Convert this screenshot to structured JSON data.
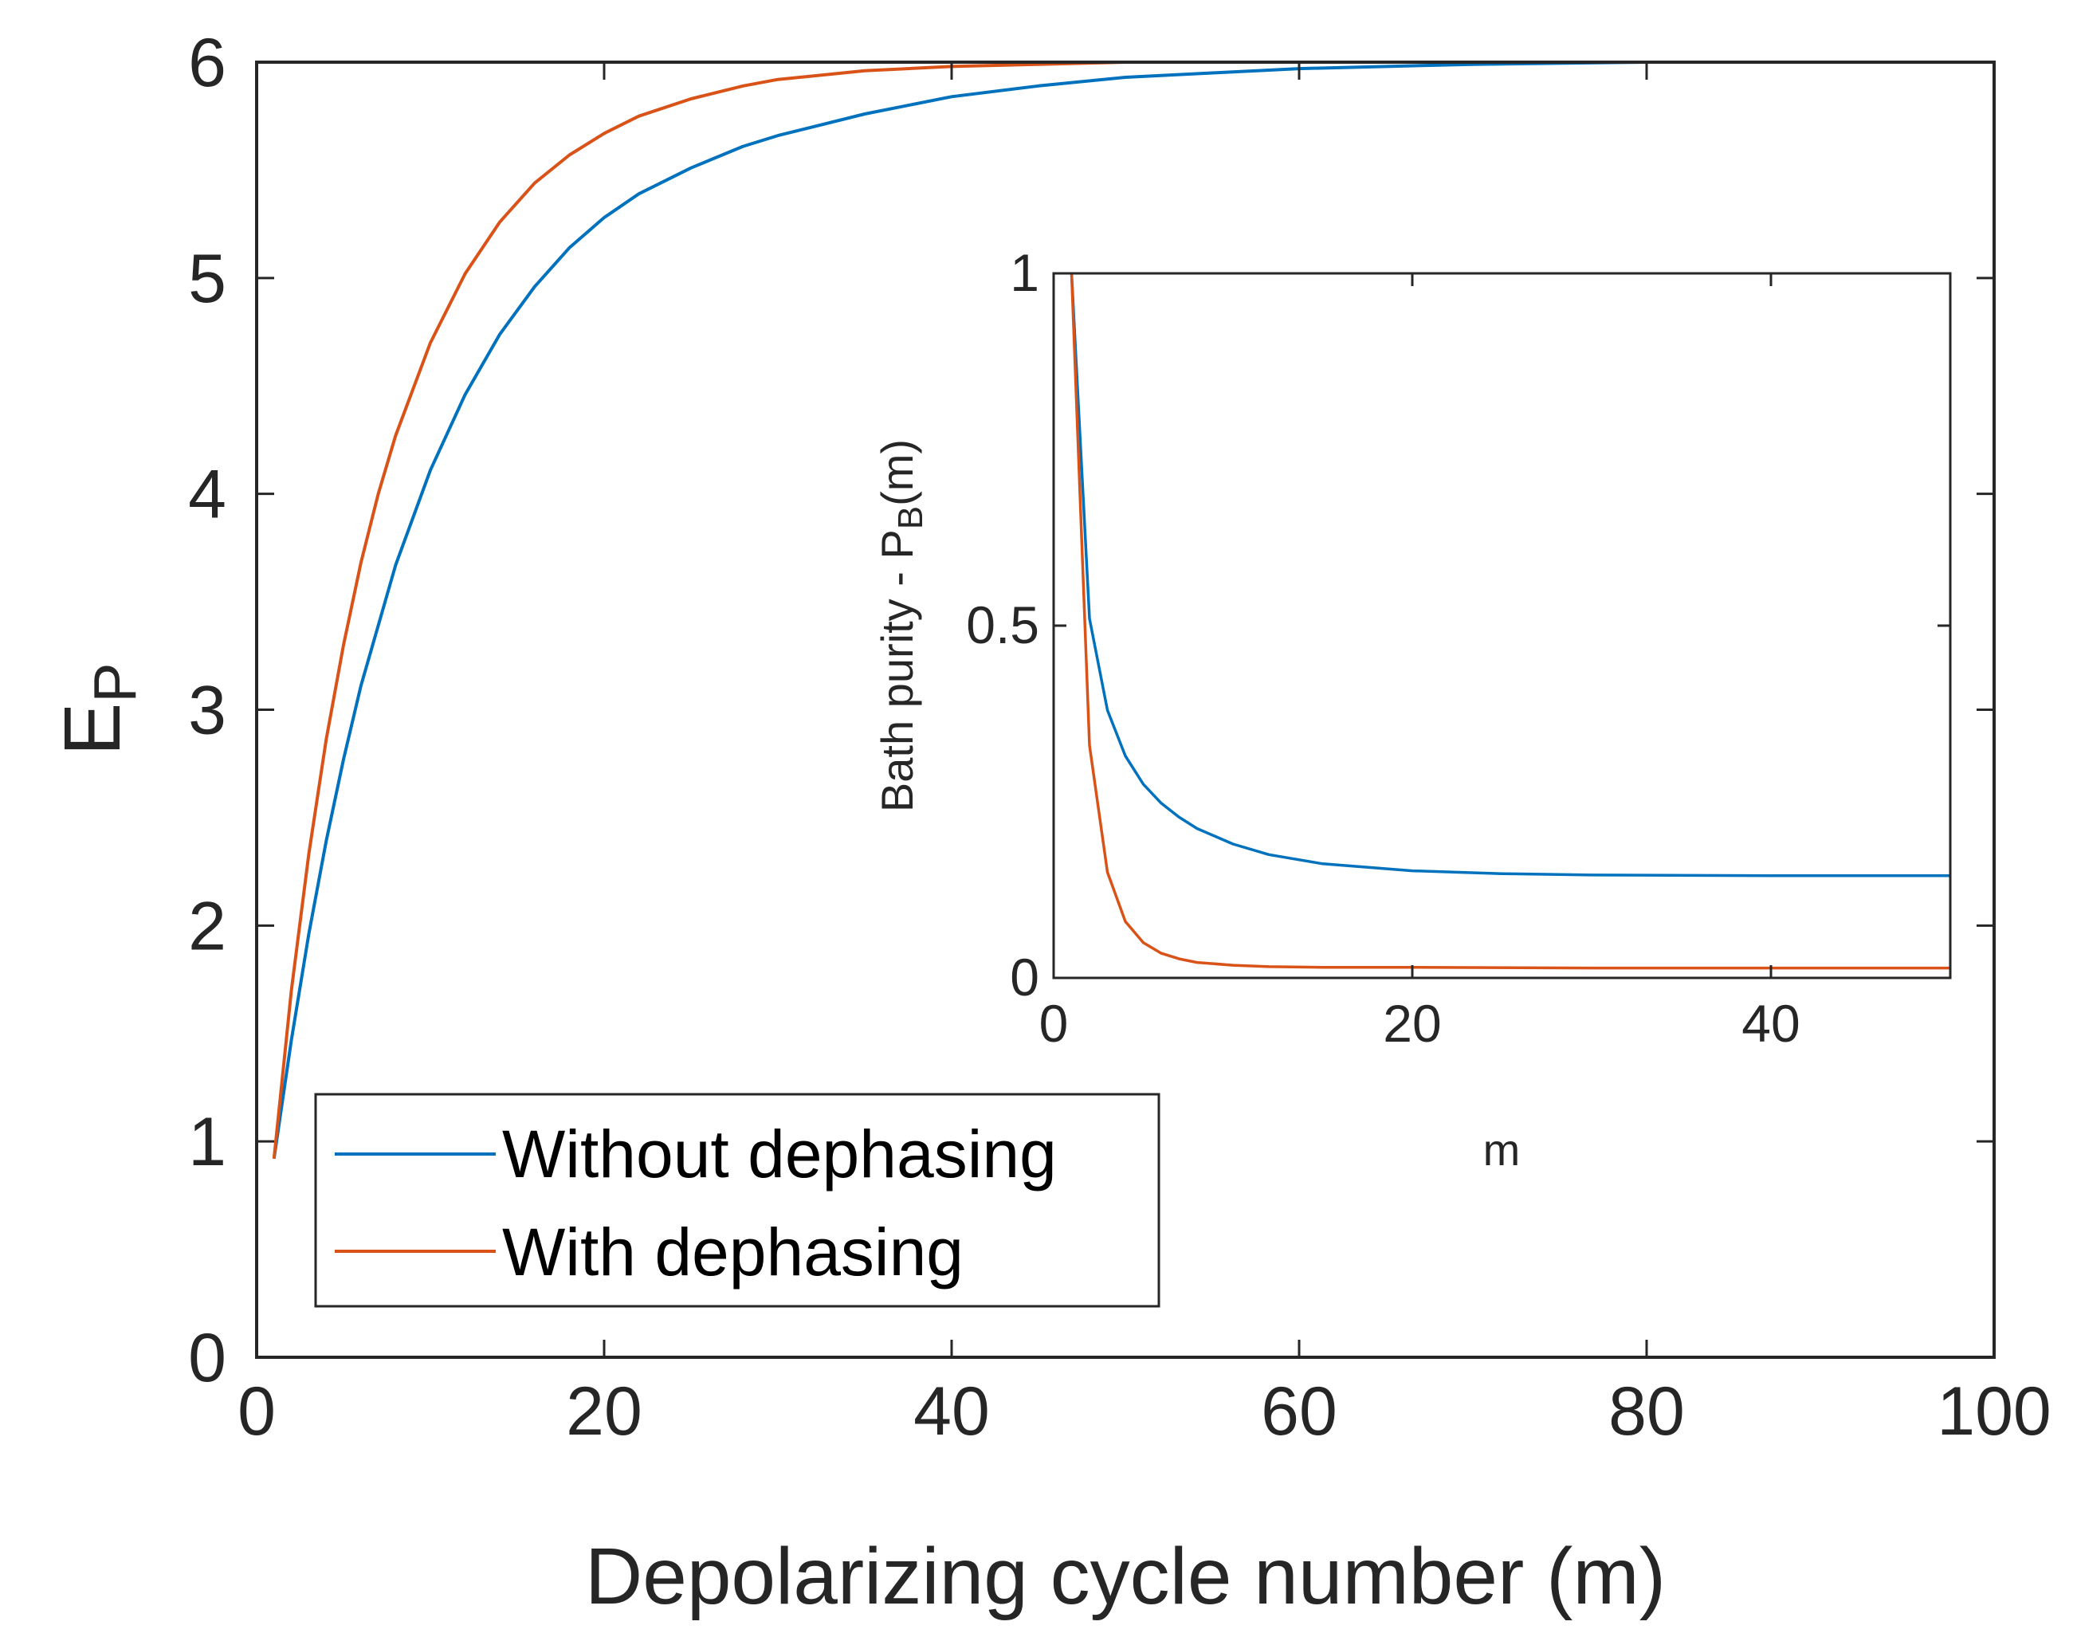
{
  "colors": {
    "blue": "#0072BD",
    "orange": "#D95319",
    "axis": "#262626",
    "background": "#ffffff"
  },
  "chart_data": [
    {
      "id": "main",
      "type": "line",
      "title": "",
      "xlabel": "Depolarizing cycle number (m)",
      "ylabel_main": "E",
      "ylabel_sub": "P",
      "xlim": [
        0,
        100
      ],
      "ylim": [
        0,
        6
      ],
      "xticks": [
        0,
        20,
        40,
        60,
        80,
        100
      ],
      "yticks": [
        0,
        1,
        2,
        3,
        4,
        5,
        6
      ],
      "grid": false,
      "legend_position": "bottom-left",
      "legend": [
        "Without dephasing",
        "With dephasing"
      ],
      "series": [
        {
          "name": "Without dephasing",
          "color": "#0072BD",
          "x": [
            1,
            2,
            3,
            4,
            5,
            6,
            8,
            10,
            12,
            14,
            16,
            18,
            20,
            22,
            25,
            28,
            30,
            35,
            40,
            45,
            50,
            55,
            60,
            70,
            80,
            90,
            100
          ],
          "y": [
            0.92,
            1.47,
            1.96,
            2.39,
            2.77,
            3.11,
            3.67,
            4.11,
            4.46,
            4.74,
            4.96,
            5.14,
            5.28,
            5.39,
            5.51,
            5.61,
            5.66,
            5.76,
            5.84,
            5.89,
            5.93,
            5.95,
            5.97,
            5.99,
            6.0,
            6.0,
            6.0
          ]
        },
        {
          "name": "With dephasing",
          "color": "#D95319",
          "x": [
            1,
            2,
            3,
            4,
            5,
            6,
            7,
            8,
            10,
            12,
            14,
            16,
            18,
            20,
            22,
            25,
            28,
            30,
            35,
            40,
            45,
            50,
            60,
            80,
            100
          ],
          "y": [
            0.92,
            1.7,
            2.33,
            2.86,
            3.3,
            3.68,
            4.0,
            4.27,
            4.7,
            5.02,
            5.26,
            5.44,
            5.57,
            5.67,
            5.75,
            5.83,
            5.89,
            5.92,
            5.96,
            5.98,
            5.99,
            6.0,
            6.0,
            6.0,
            6.0
          ]
        }
      ]
    },
    {
      "id": "inset",
      "type": "line",
      "title": "",
      "xlabel": "m",
      "ylabel_main": "Bath purity - P",
      "ylabel_sub": "B",
      "ylabel_tail": "(m)",
      "xlim": [
        0,
        50
      ],
      "ylim": [
        0,
        1
      ],
      "xticks": [
        0,
        20,
        40
      ],
      "yticks": [
        0,
        0.5,
        1
      ],
      "grid": false,
      "series": [
        {
          "name": "Without dephasing",
          "color": "#0072BD",
          "x": [
            1,
            2,
            3,
            4,
            5,
            6,
            7,
            8,
            10,
            12,
            15,
            20,
            25,
            30,
            40,
            50
          ],
          "y": [
            1.0,
            0.51,
            0.38,
            0.315,
            0.275,
            0.248,
            0.228,
            0.212,
            0.19,
            0.175,
            0.162,
            0.152,
            0.148,
            0.146,
            0.145,
            0.145
          ]
        },
        {
          "name": "With dephasing",
          "color": "#D95319",
          "x": [
            1,
            2,
            3,
            4,
            5,
            6,
            7,
            8,
            10,
            12,
            15,
            20,
            30,
            50
          ],
          "y": [
            1.0,
            0.33,
            0.15,
            0.08,
            0.05,
            0.035,
            0.027,
            0.022,
            0.018,
            0.016,
            0.015,
            0.015,
            0.014,
            0.014
          ]
        }
      ]
    }
  ]
}
